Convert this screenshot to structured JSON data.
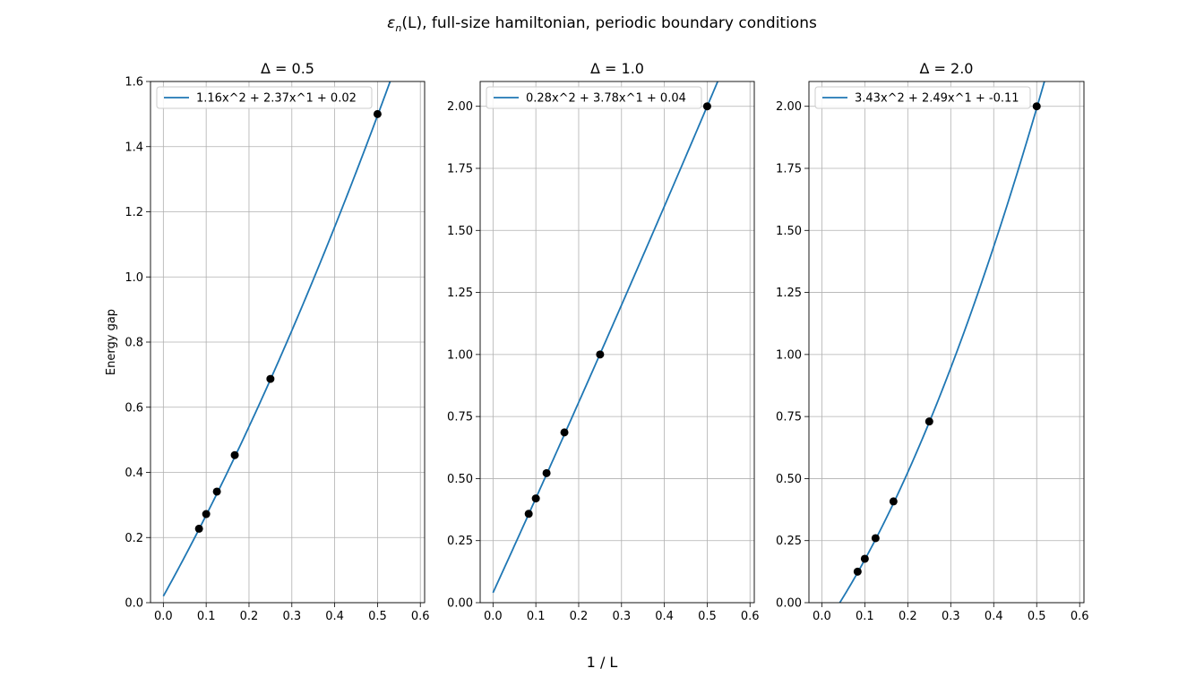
{
  "figure": {
    "suptitle_symbol": "ε",
    "suptitle_subscript": "n",
    "suptitle_rest": "(L), full-size hamiltonian, periodic boundary conditions",
    "xlabel": "1 / L",
    "ylabel": "Energy gap"
  },
  "colors": {
    "fit_line": "#1f77b4",
    "points": "#000000",
    "grid": "#b0b0b0"
  },
  "chart_data": [
    {
      "type": "scatter",
      "title": "Δ = 0.5",
      "xlabel": "1 / L",
      "ylabel": "Energy gap",
      "xlim": [
        -0.03,
        0.61
      ],
      "ylim": [
        0,
        1.6
      ],
      "xticks": [
        "0.0",
        "0.1",
        "0.2",
        "0.3",
        "0.4",
        "0.5",
        "0.6"
      ],
      "yticks": [
        "0.0",
        "0.2",
        "0.4",
        "0.6",
        "0.8",
        "1.0",
        "1.2",
        "1.4",
        "1.6"
      ],
      "grid": true,
      "legend": "upper-left",
      "points": {
        "x": [
          0.0833,
          0.1,
          0.125,
          0.1667,
          0.25,
          0.5
        ],
        "y": [
          0.227,
          0.272,
          0.341,
          0.453,
          0.687,
          1.5
        ]
      },
      "fit": {
        "label": "1.16x^2 + 2.37x^1 + 0.02",
        "coeffs": [
          1.16,
          2.37,
          0.02
        ],
        "x_range": [
          0,
          0.61
        ]
      }
    },
    {
      "type": "scatter",
      "title": "Δ = 1.0",
      "xlabel": "1 / L",
      "ylabel": "",
      "xlim": [
        -0.03,
        0.61
      ],
      "ylim": [
        0,
        2.1
      ],
      "xticks": [
        "0.0",
        "0.1",
        "0.2",
        "0.3",
        "0.4",
        "0.5",
        "0.6"
      ],
      "yticks": [
        "0.00",
        "0.25",
        "0.50",
        "0.75",
        "1.00",
        "1.25",
        "1.50",
        "1.75",
        "2.00"
      ],
      "grid": true,
      "legend": "upper-left",
      "points": {
        "x": [
          0.0833,
          0.1,
          0.125,
          0.1667,
          0.25,
          0.5
        ],
        "y": [
          0.358,
          0.42,
          0.522,
          0.686,
          1.0,
          2.0
        ]
      },
      "fit": {
        "label": "0.28x^2 + 3.78x^1 + 0.04",
        "coeffs": [
          0.28,
          3.78,
          0.04
        ],
        "x_range": [
          0,
          0.61
        ]
      }
    },
    {
      "type": "scatter",
      "title": "Δ = 2.0",
      "xlabel": "1 / L",
      "ylabel": "",
      "xlim": [
        -0.03,
        0.61
      ],
      "ylim": [
        0,
        2.1
      ],
      "xticks": [
        "0.0",
        "0.1",
        "0.2",
        "0.3",
        "0.4",
        "0.5",
        "0.6"
      ],
      "yticks": [
        "0.00",
        "0.25",
        "0.50",
        "0.75",
        "1.00",
        "1.25",
        "1.50",
        "1.75",
        "2.00"
      ],
      "grid": true,
      "legend": "upper-left",
      "points": {
        "x": [
          0.0833,
          0.1,
          0.125,
          0.1667,
          0.25,
          0.5
        ],
        "y": [
          0.125,
          0.177,
          0.26,
          0.408,
          0.73,
          2.0
        ]
      },
      "fit": {
        "label": "3.43x^2 + 2.49x^1 + -0.11",
        "coeffs": [
          3.43,
          2.49,
          -0.11
        ],
        "x_range": [
          0,
          0.61
        ]
      }
    }
  ]
}
